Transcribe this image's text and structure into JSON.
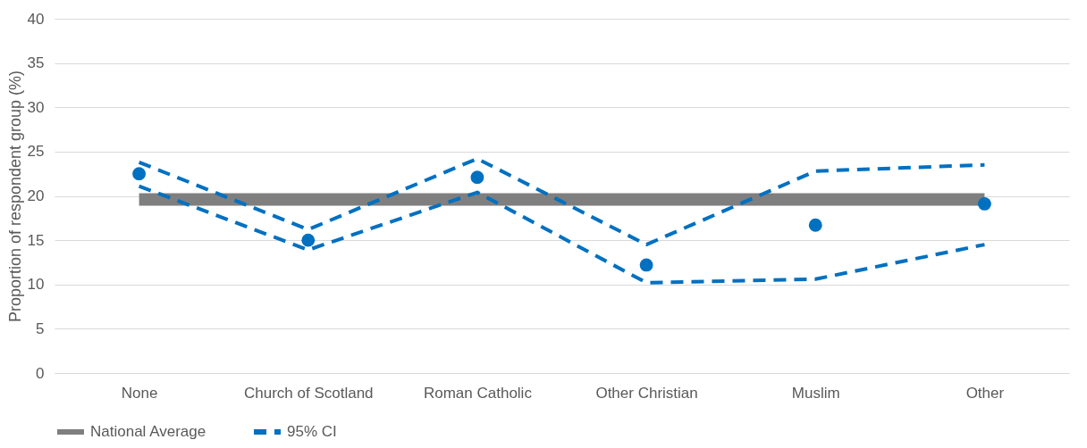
{
  "chart_data": {
    "type": "line",
    "ylabel": "Proportion of respondent group (%)",
    "categories": [
      "None",
      "Church of Scotland",
      "Roman Catholic",
      "Other Christian",
      "Muslim",
      "Other"
    ],
    "ylim": [
      0,
      40
    ],
    "yticks": [
      0,
      5,
      10,
      15,
      20,
      25,
      30,
      35,
      40
    ],
    "grid": "y",
    "legend": "bottom",
    "series": [
      {
        "name": "National Average",
        "line_style": "solid",
        "color": "#7f7f7f",
        "values": [
          19.6,
          19.6,
          19.6,
          19.6,
          19.6,
          19.6
        ]
      },
      {
        "name": "95% CI",
        "line_style": "dashed",
        "color": "#0070c0",
        "values": [
          23.8,
          16.2,
          24.2,
          14.5,
          22.8,
          23.5
        ]
      },
      {
        "line_style": "dashed",
        "color": "#0070c0",
        "values": [
          21.1,
          13.9,
          20.4,
          10.2,
          10.6,
          14.5
        ]
      },
      {
        "type": "scatter",
        "marker": "circle",
        "color": "#0070c0",
        "values": [
          22.5,
          15.0,
          22.1,
          12.2,
          16.7,
          19.1
        ]
      }
    ]
  }
}
